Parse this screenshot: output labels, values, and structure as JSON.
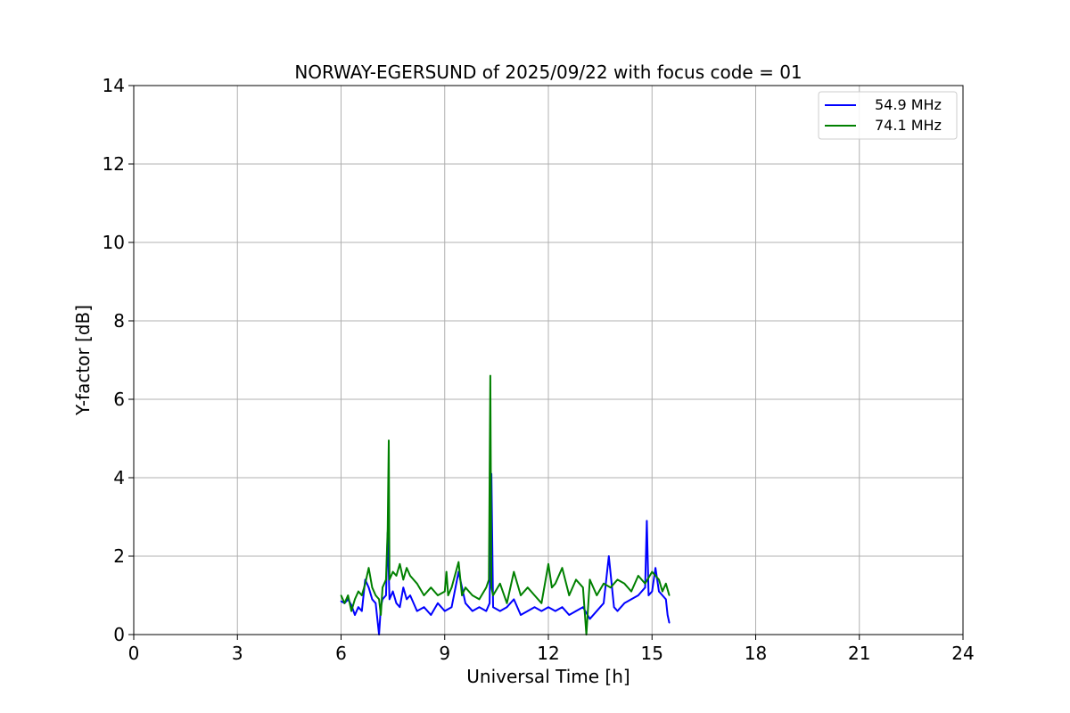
{
  "chart_data": {
    "type": "line",
    "title": "NORWAY-EGERSUND of 2025/09/22 with focus code = 01",
    "xlabel": "Universal Time [h]",
    "ylabel": "Y-factor [dB]",
    "xlim": [
      0,
      24
    ],
    "ylim": [
      0,
      14
    ],
    "xticks": [
      0,
      3,
      6,
      9,
      12,
      15,
      18,
      21,
      24
    ],
    "yticks": [
      0,
      2,
      4,
      6,
      8,
      10,
      12,
      14
    ],
    "grid": true,
    "legend_position": "top-right",
    "series": [
      {
        "name": "54.9 MHz",
        "color": "#0000ff",
        "x": [
          6.0,
          6.1,
          6.2,
          6.3,
          6.4,
          6.5,
          6.6,
          6.7,
          6.8,
          6.9,
          7.0,
          7.1,
          7.15,
          7.2,
          7.3,
          7.35,
          7.4,
          7.5,
          7.6,
          7.7,
          7.8,
          7.9,
          8.0,
          8.2,
          8.4,
          8.6,
          8.8,
          9.0,
          9.2,
          9.4,
          9.6,
          9.8,
          10.0,
          10.2,
          10.3,
          10.35,
          10.4,
          10.6,
          10.8,
          11.0,
          11.2,
          11.4,
          11.6,
          11.8,
          12.0,
          12.2,
          12.4,
          12.6,
          12.8,
          13.0,
          13.2,
          13.4,
          13.6,
          13.75,
          13.9,
          14.0,
          14.2,
          14.4,
          14.6,
          14.8,
          14.85,
          14.9,
          15.0,
          15.1,
          15.2,
          15.3,
          15.4,
          15.45,
          15.5
        ],
        "values": [
          0.85,
          0.8,
          0.9,
          0.75,
          0.5,
          0.7,
          0.6,
          1.4,
          1.2,
          0.9,
          0.8,
          0.0,
          0.7,
          0.9,
          1.0,
          2.6,
          0.9,
          1.1,
          0.8,
          0.7,
          1.2,
          0.9,
          1.0,
          0.6,
          0.7,
          0.5,
          0.8,
          0.6,
          0.7,
          1.6,
          0.8,
          0.6,
          0.7,
          0.6,
          0.8,
          4.1,
          0.7,
          0.6,
          0.7,
          0.9,
          0.5,
          0.6,
          0.7,
          0.6,
          0.7,
          0.6,
          0.7,
          0.5,
          0.6,
          0.7,
          0.4,
          0.6,
          0.8,
          2.0,
          0.7,
          0.6,
          0.8,
          0.9,
          1.0,
          1.2,
          2.9,
          1.0,
          1.1,
          1.7,
          1.1,
          1.0,
          0.9,
          0.5,
          0.3
        ]
      },
      {
        "name": "74.1 MHz",
        "color": "#008000",
        "x": [
          6.0,
          6.1,
          6.2,
          6.3,
          6.4,
          6.5,
          6.6,
          6.7,
          6.8,
          6.9,
          7.0,
          7.1,
          7.15,
          7.2,
          7.3,
          7.35,
          7.38,
          7.4,
          7.5,
          7.6,
          7.7,
          7.8,
          7.9,
          8.0,
          8.2,
          8.4,
          8.6,
          8.8,
          9.0,
          9.05,
          9.1,
          9.2,
          9.4,
          9.5,
          9.6,
          9.8,
          10.0,
          10.2,
          10.28,
          10.32,
          10.35,
          10.4,
          10.6,
          10.8,
          11.0,
          11.2,
          11.4,
          11.6,
          11.8,
          12.0,
          12.1,
          12.2,
          12.4,
          12.6,
          12.8,
          13.0,
          13.1,
          13.2,
          13.4,
          13.6,
          13.8,
          14.0,
          14.2,
          14.4,
          14.6,
          14.8,
          15.0,
          15.2,
          15.3,
          15.4,
          15.5
        ],
        "values": [
          1.0,
          0.8,
          1.0,
          0.6,
          0.9,
          1.1,
          1.0,
          1.3,
          1.7,
          1.2,
          1.0,
          0.9,
          0.5,
          1.2,
          1.4,
          2.7,
          4.95,
          1.4,
          1.6,
          1.5,
          1.8,
          1.4,
          1.7,
          1.5,
          1.3,
          1.0,
          1.2,
          1.0,
          1.1,
          1.6,
          1.0,
          1.2,
          1.85,
          1.0,
          1.2,
          1.0,
          0.9,
          1.2,
          1.4,
          6.6,
          1.2,
          1.0,
          1.3,
          0.8,
          1.6,
          1.0,
          1.2,
          1.0,
          0.8,
          1.8,
          1.2,
          1.3,
          1.7,
          1.0,
          1.4,
          1.2,
          0.0,
          1.4,
          1.0,
          1.3,
          1.2,
          1.4,
          1.3,
          1.1,
          1.5,
          1.3,
          1.6,
          1.4,
          1.1,
          1.3,
          1.0
        ]
      }
    ]
  }
}
